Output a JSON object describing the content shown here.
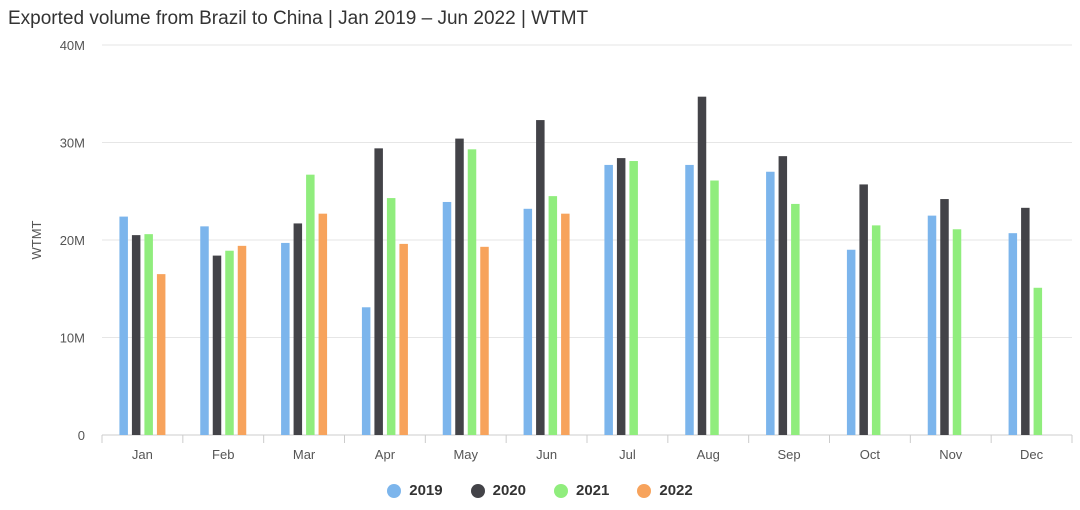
{
  "chart_data": {
    "type": "bar",
    "title": "Exported volume from Brazil to China | Jan 2019 – Jun 2022 | WTMT",
    "xlabel": "",
    "ylabel": "WTMT",
    "ylim": [
      0,
      40000000
    ],
    "yticks": [
      {
        "value": 0,
        "label": "0"
      },
      {
        "value": 10000000,
        "label": "10M"
      },
      {
        "value": 20000000,
        "label": "20M"
      },
      {
        "value": 30000000,
        "label": "30M"
      },
      {
        "value": 40000000,
        "label": "40M"
      }
    ],
    "grid": true,
    "legend_position": "bottom",
    "categories": [
      "Jan",
      "Feb",
      "Mar",
      "Apr",
      "May",
      "Jun",
      "Jul",
      "Aug",
      "Sep",
      "Oct",
      "Nov",
      "Dec"
    ],
    "series": [
      {
        "name": "2019",
        "color": "#7cb5ec",
        "values": [
          22400000,
          21400000,
          19700000,
          13100000,
          23900000,
          23200000,
          27700000,
          27700000,
          27000000,
          19000000,
          22500000,
          20700000
        ]
      },
      {
        "name": "2020",
        "color": "#434348",
        "values": [
          20500000,
          18400000,
          21700000,
          29400000,
          30400000,
          32300000,
          28400000,
          34700000,
          28600000,
          25700000,
          24200000,
          23300000
        ]
      },
      {
        "name": "2021",
        "color": "#90ed7d",
        "values": [
          20600000,
          18900000,
          26700000,
          24300000,
          29300000,
          24500000,
          28100000,
          26100000,
          23700000,
          21500000,
          21100000,
          15100000
        ]
      },
      {
        "name": "2022",
        "color": "#f7a35c",
        "values": [
          16500000,
          19400000,
          22700000,
          19600000,
          19300000,
          22700000,
          null,
          null,
          null,
          null,
          null,
          null
        ]
      }
    ]
  }
}
